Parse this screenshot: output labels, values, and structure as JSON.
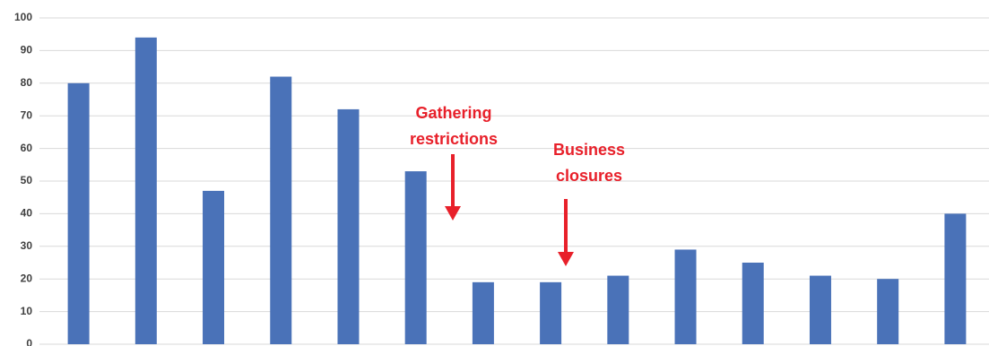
{
  "chart_data": {
    "type": "bar",
    "categories": [
      null,
      null,
      null,
      null,
      null,
      null,
      null,
      null,
      null,
      null,
      null,
      null,
      null,
      null
    ],
    "values": [
      80,
      94,
      47,
      82,
      72,
      53,
      19,
      19,
      21,
      29,
      25,
      21,
      20,
      40
    ],
    "color": "#4a72b8",
    "ylim": [
      0,
      100
    ],
    "yticks": [
      0,
      10,
      20,
      30,
      40,
      50,
      60,
      70,
      80,
      90,
      100
    ],
    "grid": true,
    "annotations": [
      {
        "lines": [
          "Gathering",
          "restrictions"
        ],
        "color": "#e8202a"
      },
      {
        "lines": [
          "Business",
          "closures"
        ],
        "color": "#e8202a"
      }
    ]
  }
}
